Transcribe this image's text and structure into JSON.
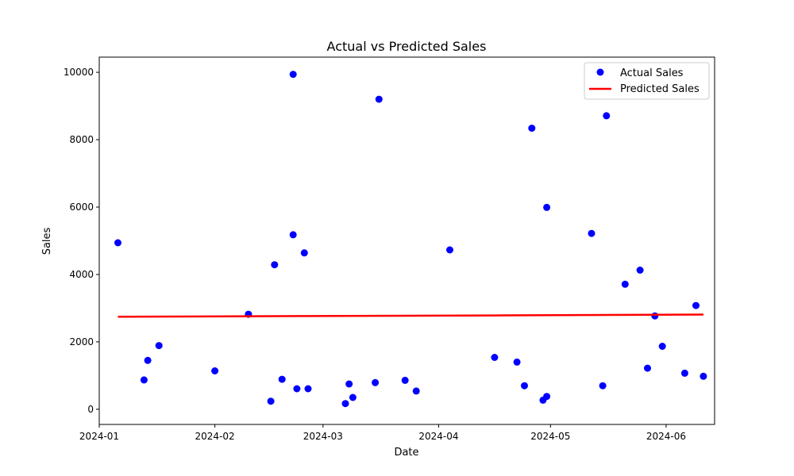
{
  "chart_data": {
    "type": "scatter",
    "title": "Actual vs Predicted Sales",
    "xlabel": "Date",
    "ylabel": "Sales",
    "xlim": [
      "2024-01-01",
      "2024-06-14"
    ],
    "ylim": [
      -450,
      10450
    ],
    "x_ticks": [
      "2024-01-01",
      "2024-02-01",
      "2024-03-01",
      "2024-04-01",
      "2024-05-01",
      "2024-06-01"
    ],
    "x_tick_labels": [
      "2024-01",
      "2024-02",
      "2024-03",
      "2024-04",
      "2024-05",
      "2024-06"
    ],
    "y_ticks": [
      0,
      2000,
      4000,
      6000,
      8000,
      10000
    ],
    "grid": false,
    "legend": "top-right",
    "series": [
      {
        "name": "Actual Sales",
        "kind": "scatter",
        "color": "#0000ff",
        "points": [
          {
            "x": "2024-01-06",
            "y": 4940
          },
          {
            "x": "2024-01-13",
            "y": 870
          },
          {
            "x": "2024-01-14",
            "y": 1450
          },
          {
            "x": "2024-01-17",
            "y": 1890
          },
          {
            "x": "2024-02-01",
            "y": 1140
          },
          {
            "x": "2024-02-10",
            "y": 2820
          },
          {
            "x": "2024-02-16",
            "y": 240
          },
          {
            "x": "2024-02-17",
            "y": 4290
          },
          {
            "x": "2024-02-19",
            "y": 890
          },
          {
            "x": "2024-02-22",
            "y": 9940
          },
          {
            "x": "2024-02-22",
            "y": 5180
          },
          {
            "x": "2024-02-23",
            "y": 610
          },
          {
            "x": "2024-02-25",
            "y": 4640
          },
          {
            "x": "2024-02-26",
            "y": 610
          },
          {
            "x": "2024-03-07",
            "y": 170
          },
          {
            "x": "2024-03-08",
            "y": 750
          },
          {
            "x": "2024-03-09",
            "y": 350
          },
          {
            "x": "2024-03-15",
            "y": 790
          },
          {
            "x": "2024-03-16",
            "y": 9200
          },
          {
            "x": "2024-03-23",
            "y": 860
          },
          {
            "x": "2024-03-26",
            "y": 540
          },
          {
            "x": "2024-04-04",
            "y": 4730
          },
          {
            "x": "2024-04-16",
            "y": 1540
          },
          {
            "x": "2024-04-22",
            "y": 1400
          },
          {
            "x": "2024-04-24",
            "y": 700
          },
          {
            "x": "2024-04-26",
            "y": 8340
          },
          {
            "x": "2024-04-29",
            "y": 270
          },
          {
            "x": "2024-04-30",
            "y": 380
          },
          {
            "x": "2024-04-30",
            "y": 5990
          },
          {
            "x": "2024-05-12",
            "y": 5220
          },
          {
            "x": "2024-05-15",
            "y": 700
          },
          {
            "x": "2024-05-16",
            "y": 8710
          },
          {
            "x": "2024-05-21",
            "y": 3710
          },
          {
            "x": "2024-05-25",
            "y": 4130
          },
          {
            "x": "2024-05-27",
            "y": 1220
          },
          {
            "x": "2024-05-29",
            "y": 2770
          },
          {
            "x": "2024-05-31",
            "y": 1870
          },
          {
            "x": "2024-06-06",
            "y": 1070
          },
          {
            "x": "2024-06-09",
            "y": 3080
          },
          {
            "x": "2024-06-11",
            "y": 980
          }
        ]
      },
      {
        "name": "Predicted Sales",
        "kind": "line",
        "color": "#ff0000",
        "points": [
          {
            "x": "2024-01-06",
            "y": 2745
          },
          {
            "x": "2024-02-26",
            "y": 2765
          },
          {
            "x": "2024-04-16",
            "y": 2785
          },
          {
            "x": "2024-06-11",
            "y": 2810
          }
        ]
      }
    ]
  }
}
